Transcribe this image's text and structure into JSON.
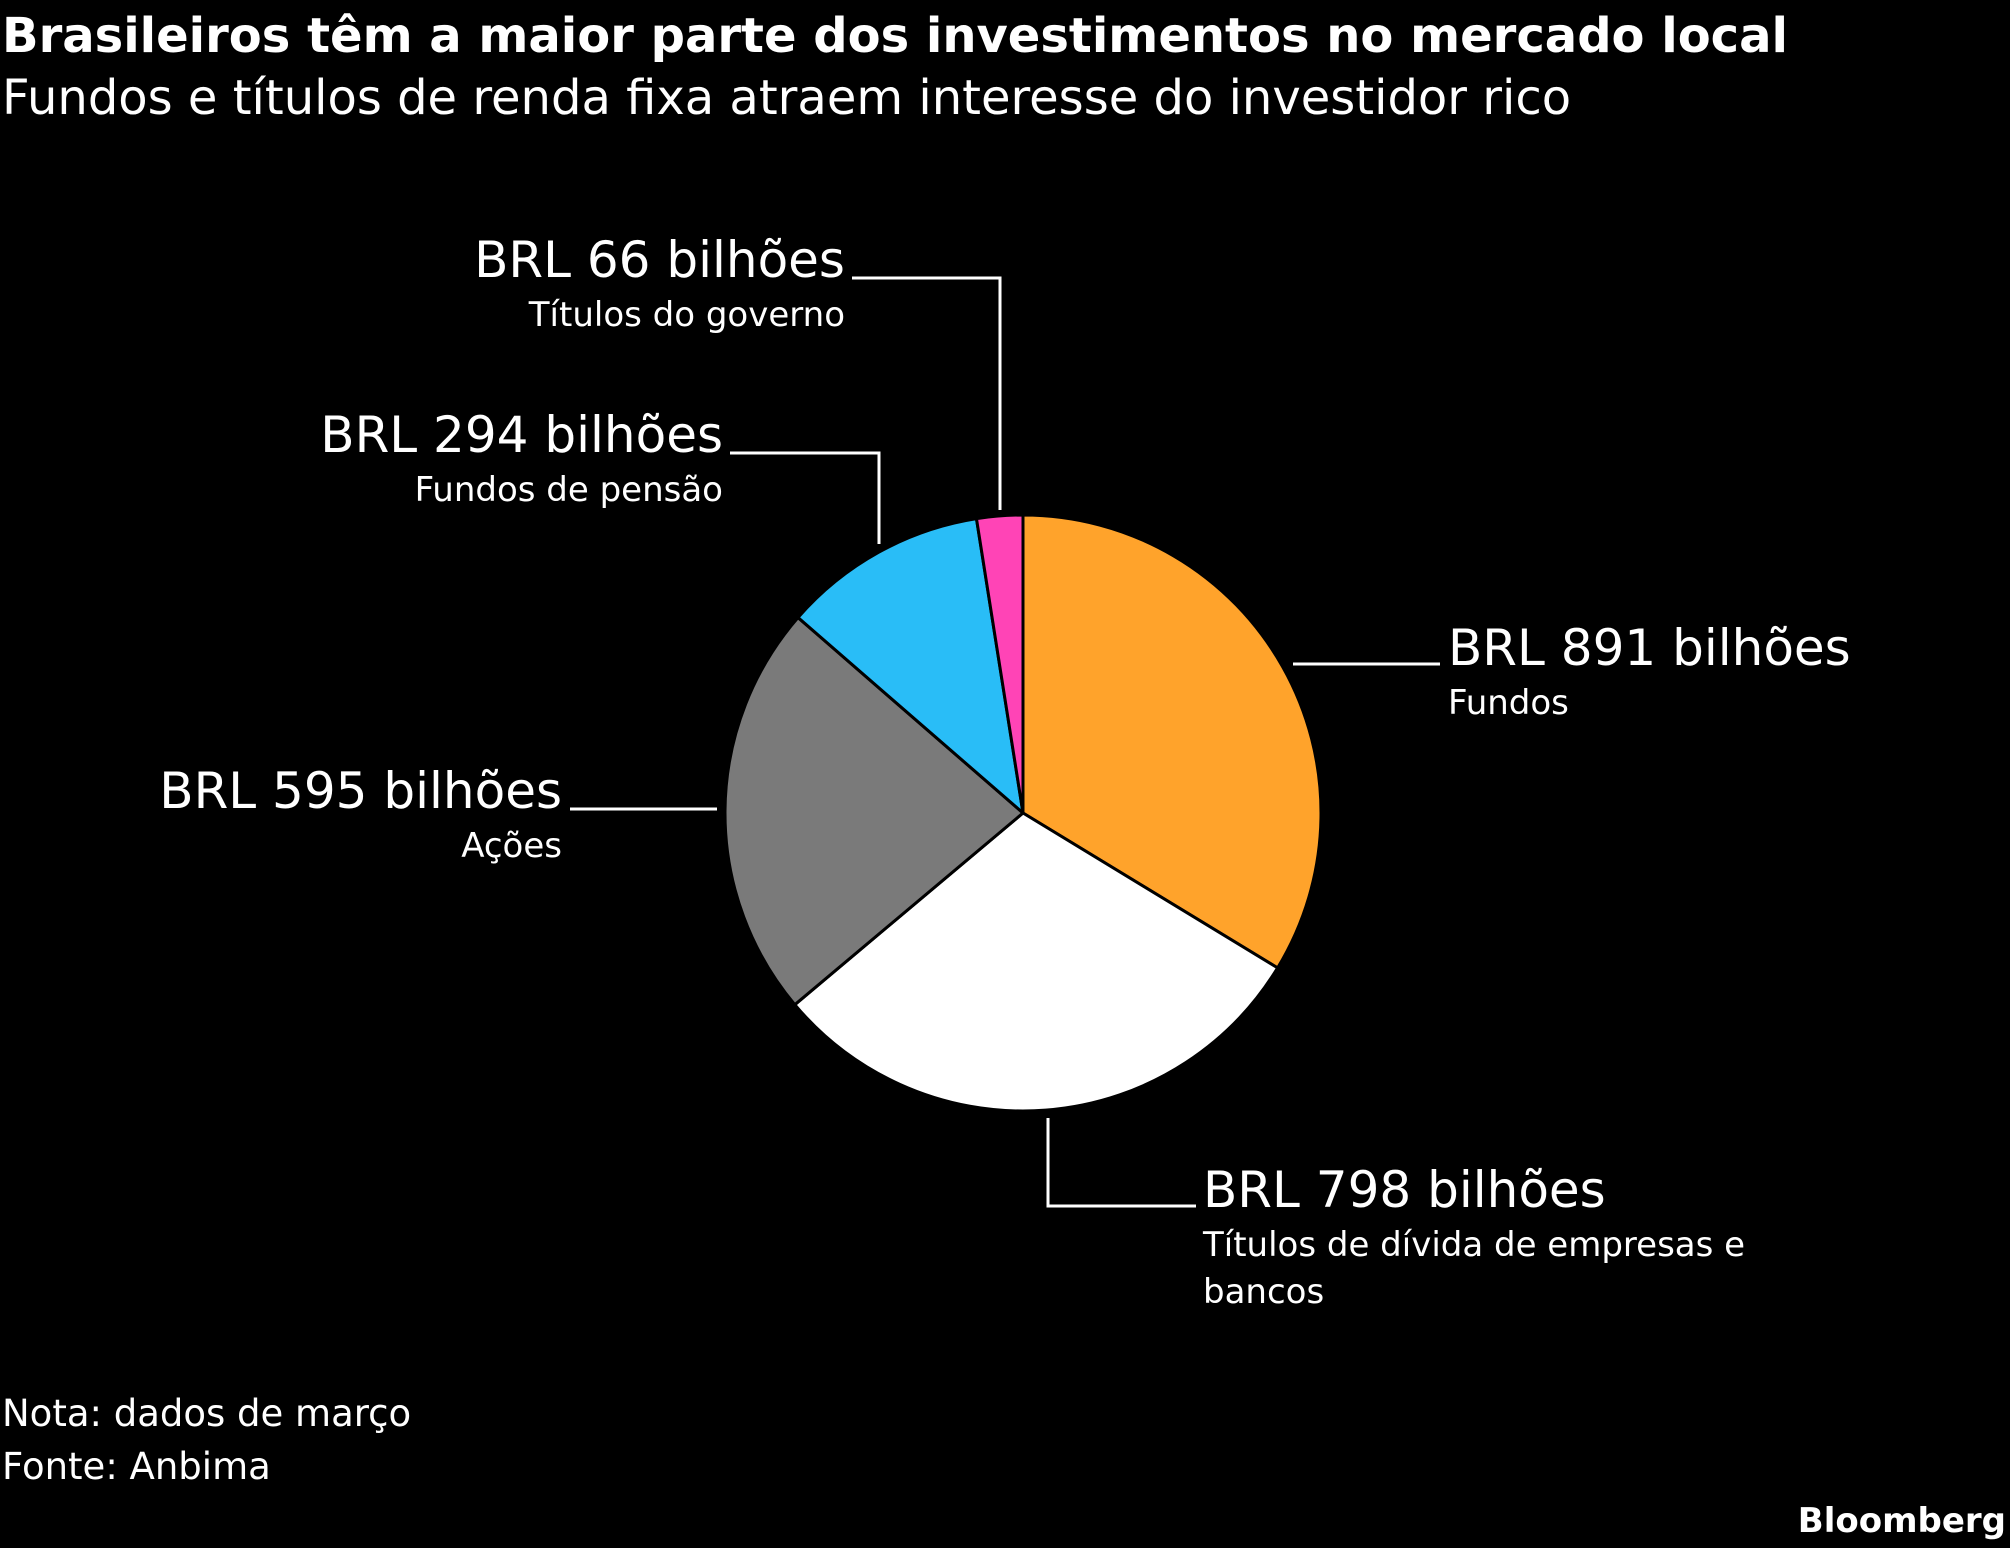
{
  "header": {
    "title": "Brasileiros têm a maior parte dos investimentos no mercado local",
    "subtitle": "Fundos e títulos de renda fixa atraem interesse do investidor rico"
  },
  "chart_data": {
    "type": "pie",
    "title": "Brasileiros têm a maior parte dos investimentos no mercado local",
    "subtitle": "Fundos e títulos de renda fixa atraem interesse do investidor rico",
    "unit": "BRL bilhões",
    "slices": [
      {
        "category": "Fundos",
        "value": 891,
        "label": "BRL 891 bilhões",
        "color": "#ffa32b"
      },
      {
        "category": "Títulos de dívida de empresas e bancos",
        "value": 798,
        "label": "BRL 798 bilhões",
        "color": "#ffffff"
      },
      {
        "category": "Ações",
        "value": 595,
        "label": "BRL 595 bilhões",
        "color": "#7a7a7a"
      },
      {
        "category": "Fundos de pensão",
        "value": 294,
        "label": "BRL 294 bilhões",
        "color": "#29bdf7"
      },
      {
        "category": "Títulos do governo",
        "value": 66,
        "label": "BRL 66 bilhões",
        "color": "#ff44b6"
      }
    ]
  },
  "footer": {
    "note": "Nota: dados de março",
    "source": "Fonte: Anbima",
    "brand": "Bloomberg"
  }
}
